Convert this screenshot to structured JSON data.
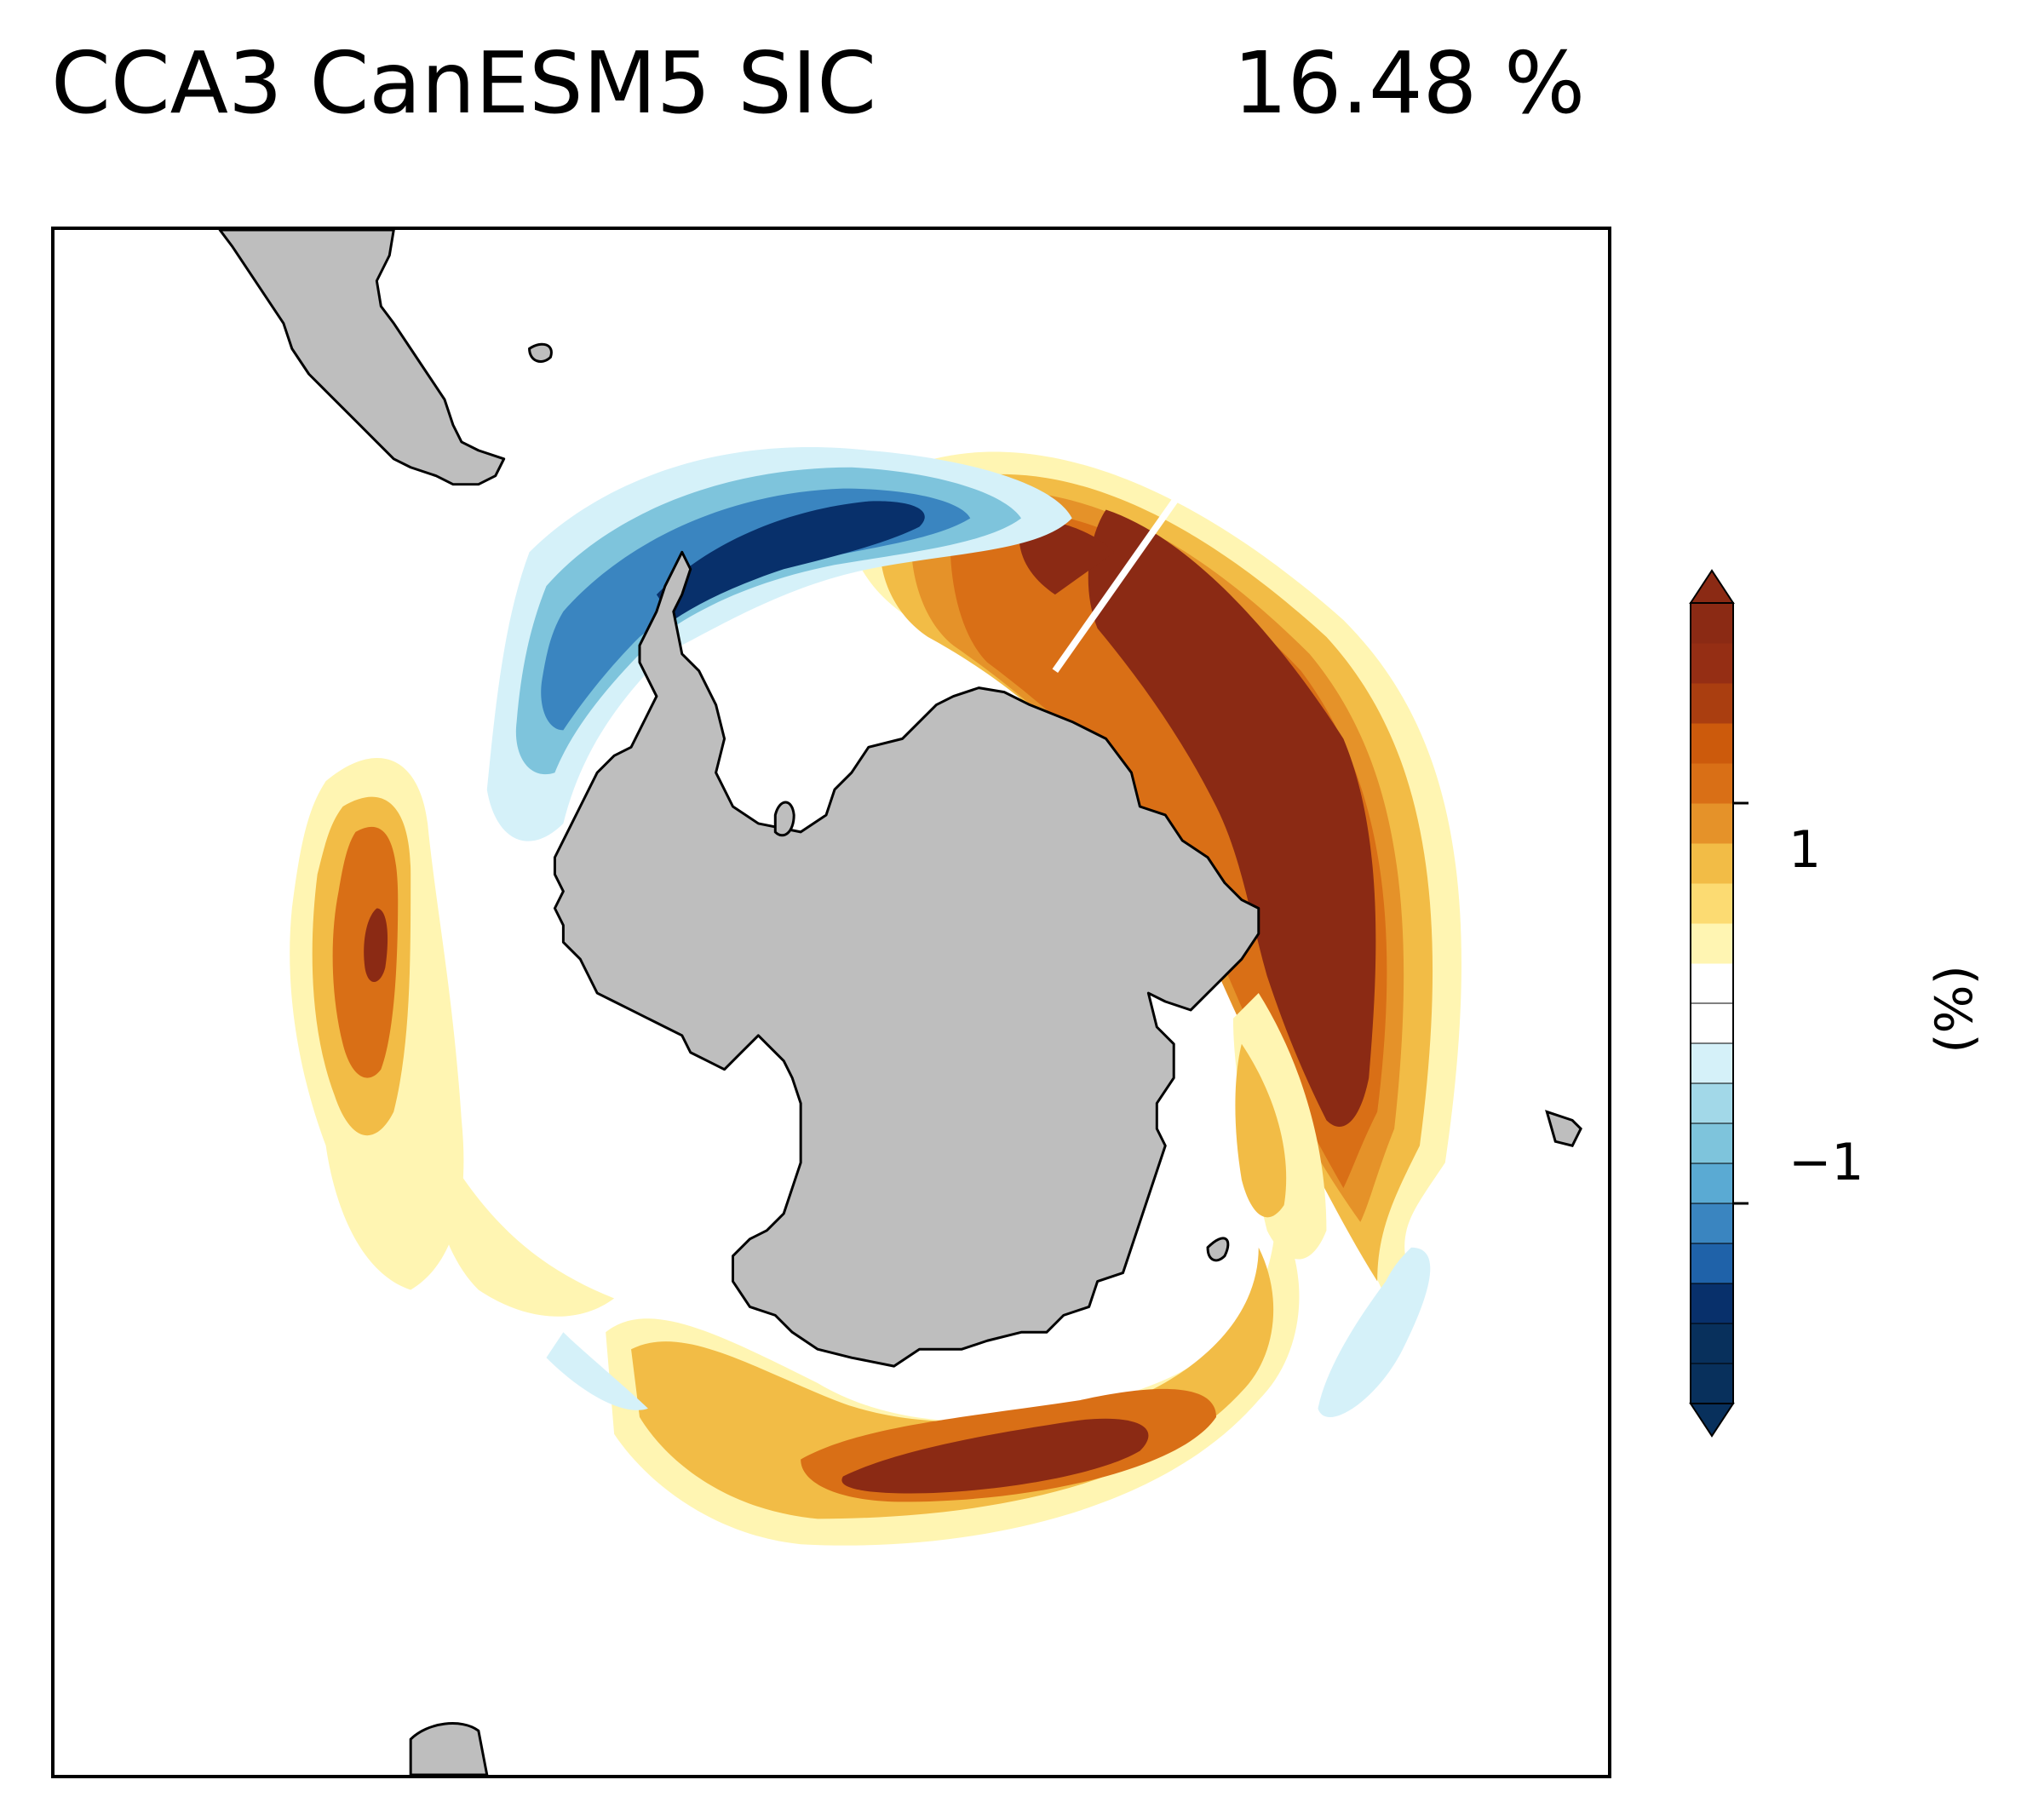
{
  "title": {
    "left": "CCA3 CanESM5 SIC",
    "right": "16.48 %"
  },
  "map": {
    "projection": "south-polar-stereographic",
    "land_color": "#bebebe",
    "coastline_color": "#000000",
    "land_label": "antarctica-landmass",
    "features": [
      {
        "name": "positive-anomaly-east-antarctic-sector",
        "sign": "positive",
        "peak_level": "> 1.5"
      },
      {
        "name": "positive-anomaly-south-of-australia",
        "sign": "positive",
        "peak_level": "> 1.5"
      },
      {
        "name": "positive-anomaly-weddell-atlantic-sector",
        "sign": "positive",
        "peak_level": "~1.3"
      },
      {
        "name": "negative-anomaly-drake-passage-bellingshausen",
        "sign": "negative",
        "peak_level": "< -1.5"
      },
      {
        "name": "weak-negative-anomaly-ross-amundsen",
        "sign": "negative",
        "peak_level": "~-0.3"
      }
    ]
  },
  "colorbar": {
    "label": "(%)",
    "ticks": [
      {
        "value": 1,
        "text": "1"
      },
      {
        "value": -1,
        "text": "−1"
      }
    ],
    "range": [
      -2.0,
      2.0
    ],
    "extend": "both",
    "levels": [
      -2.0,
      -1.8,
      -1.6,
      -1.4,
      -1.2,
      -1.0,
      -0.8,
      -0.6,
      -0.4,
      -0.2,
      0,
      0.2,
      0.4,
      0.6,
      0.8,
      1.0,
      1.2,
      1.4,
      1.6,
      1.8,
      2.0
    ],
    "colors": [
      "#08305c",
      "#08305c",
      "#08306b",
      "#1f62a9",
      "#3a85c0",
      "#5aaad3",
      "#7ec4dc",
      "#a2d8e8",
      "#d5f1f9",
      "#ffffff",
      "#ffffff",
      "#fff5b2",
      "#fcdb72",
      "#f2bc46",
      "#e59229",
      "#d96f16",
      "#cc5a0c",
      "#aa3e10",
      "#952e14",
      "#8b2a14"
    ]
  }
}
